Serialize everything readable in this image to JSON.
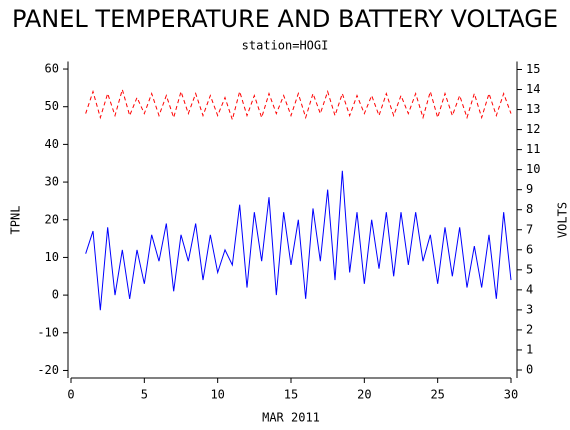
{
  "chart_data": {
    "type": "line",
    "title": "PANEL TEMPERATURE AND BATTERY VOLTAGE",
    "subtitle": "station=HOGI",
    "x_label": "MAR 2011",
    "y_label": "TPNL",
    "y2_label": "VOLTS",
    "x": [
      1,
      1.5,
      2,
      2.5,
      3,
      3.5,
      4,
      4.5,
      5,
      5.5,
      6,
      6.5,
      7,
      7.5,
      8,
      8.5,
      9,
      9.5,
      10,
      10.5,
      11,
      11.5,
      12,
      12.5,
      13,
      13.5,
      14,
      14.5,
      15,
      15.5,
      16,
      16.5,
      17,
      17.5,
      18,
      18.5,
      19,
      19.5,
      20,
      20.5,
      21,
      21.5,
      22,
      22.5,
      23,
      23.5,
      24,
      24.5,
      25,
      25.5,
      26,
      26.5,
      27,
      27.5,
      28,
      28.5,
      29,
      29.5,
      30
    ],
    "series": [
      {
        "name": "TPNL",
        "color": "#0000ff",
        "axis": "y",
        "line_style": "solid",
        "values": [
          11,
          17,
          -4,
          18,
          0,
          12,
          -1,
          12,
          3,
          16,
          9,
          19,
          1,
          16,
          9,
          19,
          4,
          16,
          6,
          12,
          8,
          24,
          2,
          22,
          9,
          26,
          0,
          22,
          8,
          20,
          -1,
          23,
          9,
          28,
          4,
          33,
          6,
          22,
          3,
          20,
          7,
          22,
          5,
          22,
          8,
          22,
          9,
          16,
          3,
          18,
          5,
          18,
          2,
          13,
          2,
          16,
          -1,
          22,
          4
        ]
      },
      {
        "name": "VOLTS",
        "color": "#ff0000",
        "axis": "y2",
        "line_style": "dashed",
        "values": [
          12.8,
          13.9,
          12.6,
          13.8,
          12.7,
          14.0,
          12.7,
          13.6,
          12.8,
          13.8,
          12.7,
          13.7,
          12.6,
          13.9,
          12.8,
          13.8,
          12.7,
          13.7,
          12.7,
          13.6,
          12.5,
          13.9,
          12.7,
          13.7,
          12.6,
          13.8,
          12.8,
          13.7,
          12.7,
          13.8,
          12.6,
          13.8,
          12.8,
          13.9,
          12.7,
          13.8,
          12.7,
          13.7,
          12.8,
          13.7,
          12.7,
          13.8,
          12.7,
          13.7,
          12.8,
          13.8,
          12.6,
          13.9,
          12.6,
          13.8,
          12.7,
          13.7,
          12.6,
          13.8,
          12.6,
          13.8,
          12.7,
          13.8,
          12.8
        ]
      }
    ],
    "xlim": [
      0,
      30
    ],
    "xticks": [
      0,
      5,
      10,
      15,
      20,
      25,
      30
    ],
    "ylim": [
      -22,
      62
    ],
    "yticks": [
      -20,
      -10,
      0,
      10,
      20,
      30,
      40,
      50,
      60
    ],
    "y2lim": [
      -0.4,
      15.4
    ],
    "y2ticks": [
      0,
      1,
      2,
      3,
      4,
      5,
      6,
      7,
      8,
      9,
      10,
      11,
      12,
      13,
      14,
      15
    ],
    "grid": false
  }
}
